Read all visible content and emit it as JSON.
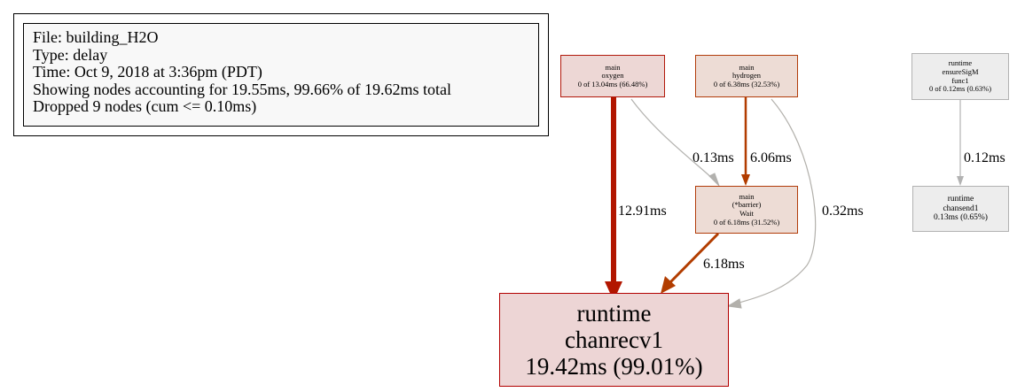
{
  "legend": {
    "file": "File: building_H2O",
    "type": "Type: delay",
    "time": "Time: Oct 9, 2018 at 3:36pm (PDT)",
    "showing": "Showing nodes accounting for 19.55ms, 99.66% of 19.62ms total",
    "dropped": "Dropped 9 nodes (cum <= 0.10ms)"
  },
  "nodes": {
    "main_oxygen": {
      "lines": [
        "main",
        "oxygen",
        "0 of 13.04ms (66.48%)"
      ],
      "fill": "#edd7d5",
      "border": "#b2180a"
    },
    "main_hydrogen": {
      "lines": [
        "main",
        "hydrogen",
        "0 of 6.38ms (32.53%)"
      ],
      "fill": "#eddcd5",
      "border": "#b23c0a"
    },
    "main_barrier_wait": {
      "lines": [
        "main",
        "(*barrier)",
        "Wait",
        "0 of 6.18ms (31.52%)"
      ],
      "fill": "#eddcd5",
      "border": "#b23c0a"
    },
    "runtime_chanrecv1": {
      "lines": [
        "runtime",
        "chanrecv1",
        "19.42ms (99.01%)"
      ],
      "fill": "#edd5d5",
      "border": "#b20000"
    },
    "runtime_ensuresigm_func1": {
      "lines": [
        "runtime",
        "ensureSigM",
        "func1",
        "0 of 0.12ms (0.63%)"
      ],
      "fill": "#ededed",
      "border": "#b2b2b2"
    },
    "runtime_chansend1": {
      "lines": [
        "runtime",
        "chansend1",
        "0.13ms (0.65%)"
      ],
      "fill": "#ededed",
      "border": "#b2b2b2"
    }
  },
  "edges": {
    "oxygen_to_chanrecv1": {
      "label": "12.91ms",
      "color": "#b21600"
    },
    "oxygen_to_barrier_wait": {
      "label": "0.13ms",
      "color": "#b2b1ae"
    },
    "hydrogen_to_barrier_wait": {
      "label": "6.06ms",
      "color": "#b23c00"
    },
    "hydrogen_to_chanrecv1": {
      "label": "0.32ms",
      "color": "#b2b0ab"
    },
    "barrier_wait_to_chanrecv1": {
      "label": "6.18ms",
      "color": "#b23d00"
    },
    "ensuresigm_to_chansend1": {
      "label": "0.12ms",
      "color": "#b2b2b2"
    }
  }
}
